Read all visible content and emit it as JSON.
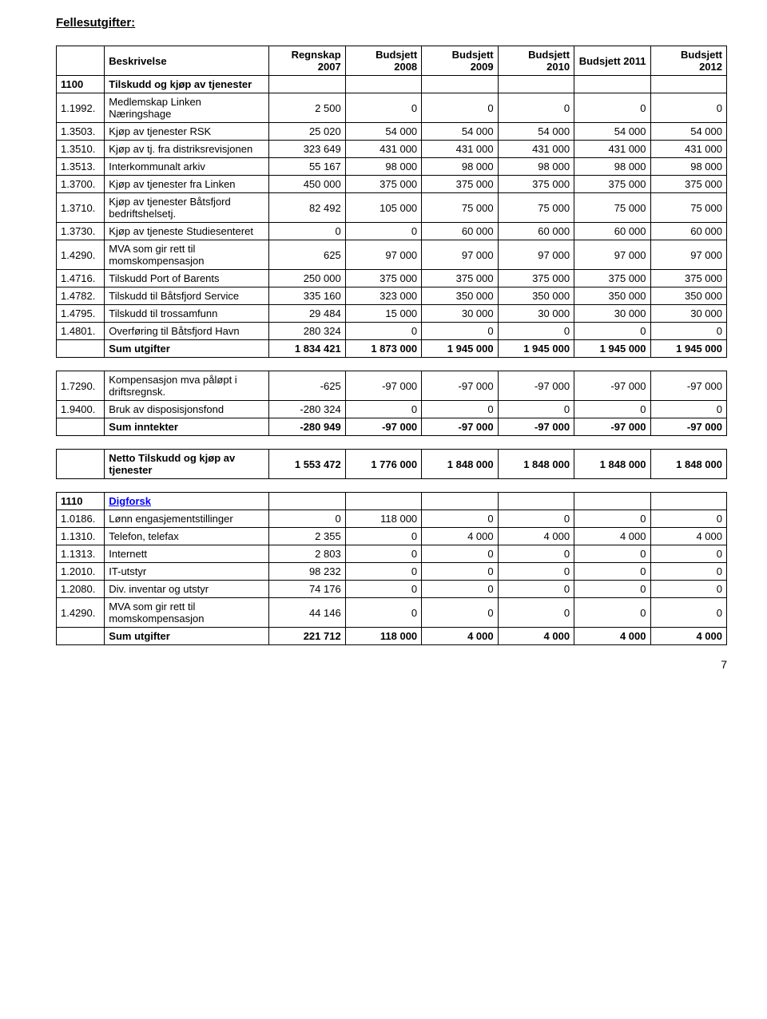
{
  "title": "Fellesutgifter:",
  "columns": {
    "desc": "Beskrivelse",
    "c1": "Regnskap 2007",
    "c2": "Budsjett 2008",
    "c3": "Budsjett 2009",
    "c4": "Budsjett 2010",
    "c5": "Budsjett 2011",
    "c6": "Budsjett 2012"
  },
  "t1": {
    "section": {
      "code": "1100",
      "label": "Tilskudd og kjøp av tjenester"
    },
    "rows": [
      {
        "code": "1.1992.",
        "desc": "Medlemskap Linken Næringshage",
        "v": [
          "2 500",
          "0",
          "0",
          "0",
          "0",
          "0"
        ]
      },
      {
        "code": "1.3503.",
        "desc": "Kjøp av tjenester RSK",
        "v": [
          "25 020",
          "54 000",
          "54 000",
          "54 000",
          "54 000",
          "54 000"
        ]
      },
      {
        "code": "1.3510.",
        "desc": "Kjøp av tj. fra distriksrevisjonen",
        "v": [
          "323 649",
          "431 000",
          "431 000",
          "431 000",
          "431 000",
          "431 000"
        ]
      },
      {
        "code": "1.3513.",
        "desc": "Interkommunalt arkiv",
        "v": [
          "55 167",
          "98 000",
          "98 000",
          "98 000",
          "98 000",
          "98 000"
        ]
      },
      {
        "code": "1.3700.",
        "desc": "Kjøp av tjenester fra Linken",
        "v": [
          "450 000",
          "375 000",
          "375 000",
          "375 000",
          "375 000",
          "375 000"
        ]
      },
      {
        "code": "1.3710.",
        "desc": "Kjøp av tjenester Båtsfjord bedriftshelsetj.",
        "v": [
          "82 492",
          "105 000",
          "75 000",
          "75 000",
          "75 000",
          "75 000"
        ]
      },
      {
        "code": "1.3730.",
        "desc": "Kjøp av tjeneste Studiesenteret",
        "v": [
          "0",
          "0",
          "60 000",
          "60 000",
          "60 000",
          "60 000"
        ]
      },
      {
        "code": "1.4290.",
        "desc": "MVA som gir rett til momskompensasjon",
        "v": [
          "625",
          "97 000",
          "97 000",
          "97 000",
          "97 000",
          "97 000"
        ]
      },
      {
        "code": "1.4716.",
        "desc": "Tilskudd Port of Barents",
        "v": [
          "250 000",
          "375 000",
          "375 000",
          "375 000",
          "375 000",
          "375 000"
        ]
      },
      {
        "code": "1.4782.",
        "desc": "Tilskudd til Båtsfjord Service",
        "v": [
          "335 160",
          "323 000",
          "350 000",
          "350 000",
          "350 000",
          "350 000"
        ]
      },
      {
        "code": "1.4795.",
        "desc": "Tilskudd til trossamfunn",
        "v": [
          "29 484",
          "15 000",
          "30 000",
          "30 000",
          "30 000",
          "30 000"
        ]
      },
      {
        "code": "1.4801.",
        "desc": "Overføring til Båtsfjord Havn",
        "v": [
          "280 324",
          "0",
          "0",
          "0",
          "0",
          "0"
        ]
      }
    ],
    "sum": {
      "label": "Sum utgifter",
      "v": [
        "1 834 421",
        "1 873 000",
        "1 945 000",
        "1 945 000",
        "1 945 000",
        "1 945 000"
      ]
    }
  },
  "t2": {
    "rows": [
      {
        "code": "1.7290.",
        "desc": "Kompensasjon mva påløpt i driftsregnsk.",
        "v": [
          "-625",
          "-97 000",
          "-97 000",
          "-97 000",
          "-97 000",
          "-97 000"
        ]
      },
      {
        "code": "1.9400.",
        "desc": "Bruk av disposisjonsfond",
        "v": [
          "-280 324",
          "0",
          "0",
          "0",
          "0",
          "0"
        ]
      }
    ],
    "sum": {
      "label": "Sum inntekter",
      "v": [
        "-280 949",
        "-97 000",
        "-97 000",
        "-97 000",
        "-97 000",
        "-97 000"
      ]
    }
  },
  "t3": {
    "label": "Netto Tilskudd og kjøp av tjenester",
    "v": [
      "1 553 472",
      "1 776 000",
      "1 848 000",
      "1 848 000",
      "1 848 000",
      "1 848 000"
    ]
  },
  "t4": {
    "section": {
      "code": "1110",
      "label": "Digforsk"
    },
    "rows": [
      {
        "code": "1.0186.",
        "desc": "Lønn engasjementstillinger",
        "v": [
          "0",
          "118 000",
          "0",
          "0",
          "0",
          "0"
        ]
      },
      {
        "code": "1.1310.",
        "desc": "Telefon, telefax",
        "v": [
          "2 355",
          "0",
          "4 000",
          "4 000",
          "4 000",
          "4 000"
        ]
      },
      {
        "code": "1.1313.",
        "desc": "Internett",
        "v": [
          "2 803",
          "0",
          "0",
          "0",
          "0",
          "0"
        ]
      },
      {
        "code": "1.2010.",
        "desc": "IT-utstyr",
        "v": [
          "98 232",
          "0",
          "0",
          "0",
          "0",
          "0"
        ]
      },
      {
        "code": "1.2080.",
        "desc": "Div. inventar og utstyr",
        "v": [
          "74 176",
          "0",
          "0",
          "0",
          "0",
          "0"
        ]
      },
      {
        "code": "1.4290.",
        "desc": "MVA som gir rett til momskompensasjon",
        "v": [
          "44 146",
          "0",
          "0",
          "0",
          "0",
          "0"
        ]
      }
    ],
    "sum": {
      "label": "Sum utgifter",
      "v": [
        "221 712",
        "118 000",
        "4 000",
        "4 000",
        "4 000",
        "4 000"
      ]
    }
  },
  "pageNumber": "7"
}
